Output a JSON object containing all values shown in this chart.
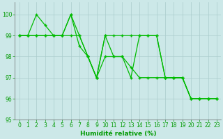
{
  "line1_x": [
    0,
    1,
    2,
    3,
    4,
    5,
    6,
    7,
    8,
    9,
    10,
    11,
    12,
    13,
    14,
    15,
    16,
    17,
    18,
    19,
    20,
    21,
    22,
    23
  ],
  "line1_y": [
    99,
    99,
    99,
    99,
    99,
    99,
    99,
    99,
    98,
    97,
    99,
    99,
    99,
    99,
    99,
    99,
    99,
    97,
    97,
    97,
    96,
    96,
    96,
    96
  ],
  "line2_x": [
    0,
    1,
    2,
    3,
    4,
    5,
    6,
    7,
    8,
    9,
    10,
    11,
    12,
    13,
    14,
    15,
    16,
    17,
    18,
    19,
    20,
    21,
    22,
    23
  ],
  "line2_y": [
    99,
    99,
    99,
    99,
    99,
    99,
    100,
    99,
    98,
    97,
    98,
    98,
    98,
    97.5,
    97,
    97,
    97,
    97,
    97,
    97,
    96,
    96,
    96,
    96
  ],
  "line3_x": [
    0,
    1,
    2,
    3,
    4,
    5,
    6,
    7,
    8,
    9,
    10,
    11,
    12,
    13,
    14,
    15,
    16,
    17,
    18,
    19,
    20,
    21,
    22,
    23
  ],
  "line3_y": [
    99,
    99,
    100,
    99.5,
    99,
    99,
    100,
    98.5,
    98,
    97,
    99,
    98,
    98,
    97,
    99,
    99,
    99,
    97,
    97,
    97,
    96,
    96,
    96,
    96
  ],
  "xlim": [
    -0.5,
    23.5
  ],
  "ylim": [
    95,
    100.6
  ],
  "yticks": [
    95,
    96,
    97,
    98,
    99,
    100
  ],
  "xticks": [
    0,
    1,
    2,
    3,
    4,
    5,
    6,
    7,
    8,
    9,
    10,
    11,
    12,
    13,
    14,
    15,
    16,
    17,
    18,
    19,
    20,
    21,
    22,
    23
  ],
  "xlabel": "Humidité relative (%)",
  "line_color": "#00bb00",
  "bg_color": "#cce8e8",
  "grid_color": "#aacccc",
  "axis_color": "#666666",
  "text_color": "#009900",
  "xlabel_fontsize": 6.5,
  "tick_fontsize": 5.5
}
